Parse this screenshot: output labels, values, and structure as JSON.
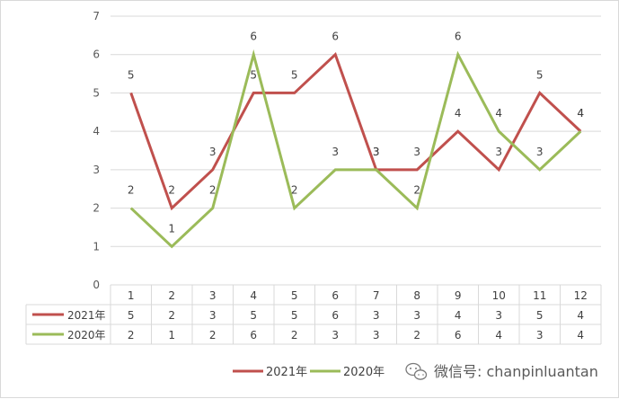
{
  "chart_data": {
    "type": "line",
    "categories": [
      "1",
      "2",
      "3",
      "4",
      "5",
      "6",
      "7",
      "8",
      "9",
      "10",
      "11",
      "12"
    ],
    "series": [
      {
        "name": "2021年",
        "color": "#c0504d",
        "values": [
          5,
          2,
          3,
          5,
          5,
          6,
          3,
          3,
          4,
          3,
          5,
          4
        ]
      },
      {
        "name": "2020年",
        "color": "#9bbb59",
        "values": [
          2,
          1,
          2,
          6,
          2,
          3,
          3,
          2,
          6,
          4,
          3,
          4
        ]
      }
    ],
    "y_ticks": [
      "0",
      "1",
      "2",
      "3",
      "4",
      "5",
      "6",
      "7"
    ],
    "ylim": [
      0,
      7
    ],
    "grid": true,
    "data_table": true,
    "legend_position": "bottom"
  },
  "watermark": {
    "icon": "wechat-icon",
    "text": "微信号: chanpinluantan"
  }
}
